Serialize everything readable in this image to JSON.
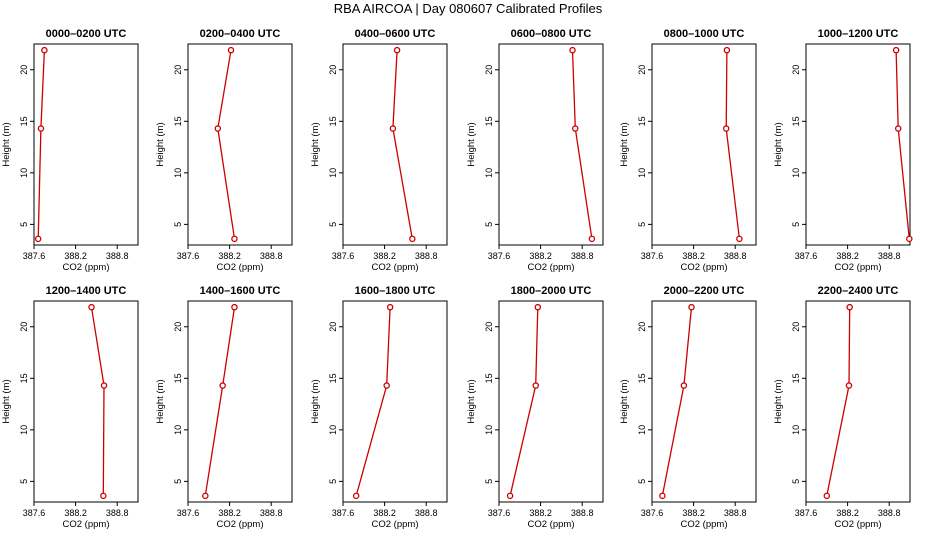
{
  "title": "RBA AIRCOA  |  Day 080607  Calibrated Profiles",
  "chart_data": [
    {
      "type": "line",
      "title": "0000–0200 UTC",
      "xlabel": "CO2 (ppm)",
      "ylabel": "Height (m)",
      "xlim": [
        387.6,
        389.1
      ],
      "ylim": [
        3.0,
        22.5
      ],
      "x_ticks": [
        "387.6",
        "388.2",
        "388.8"
      ],
      "y_ticks": [
        "5",
        "10",
        "15",
        "20"
      ],
      "x": [
        387.66,
        387.7,
        387.75
      ],
      "y": [
        3.6,
        14.3,
        21.9
      ]
    },
    {
      "type": "line",
      "title": "0200–0400 UTC",
      "xlabel": "CO2 (ppm)",
      "ylabel": "Height (m)",
      "xlim": [
        387.6,
        389.1
      ],
      "ylim": [
        3.0,
        22.5
      ],
      "x_ticks": [
        "387.6",
        "388.2",
        "388.8"
      ],
      "y_ticks": [
        "5",
        "10",
        "15",
        "20"
      ],
      "x": [
        388.27,
        388.03,
        388.22
      ],
      "y": [
        3.6,
        14.3,
        21.9
      ]
    },
    {
      "type": "line",
      "title": "0400–0600 UTC",
      "xlabel": "CO2 (ppm)",
      "ylabel": "Height (m)",
      "xlim": [
        387.6,
        389.1
      ],
      "ylim": [
        3.0,
        22.5
      ],
      "x_ticks": [
        "387.6",
        "388.2",
        "388.8"
      ],
      "y_ticks": [
        "5",
        "10",
        "15",
        "20"
      ],
      "x": [
        388.6,
        388.32,
        388.38
      ],
      "y": [
        3.6,
        14.3,
        21.9
      ]
    },
    {
      "type": "line",
      "title": "0600–0800 UTC",
      "xlabel": "CO2 (ppm)",
      "ylabel": "Height (m)",
      "xlim": [
        387.6,
        389.1
      ],
      "ylim": [
        3.0,
        22.5
      ],
      "x_ticks": [
        "387.6",
        "388.2",
        "388.8"
      ],
      "y_ticks": [
        "5",
        "10",
        "15",
        "20"
      ],
      "x": [
        388.94,
        388.7,
        388.66
      ],
      "y": [
        3.6,
        14.3,
        21.9
      ]
    },
    {
      "type": "line",
      "title": "0800–1000 UTC",
      "xlabel": "CO2 (ppm)",
      "ylabel": "Height (m)",
      "xlim": [
        387.6,
        389.1
      ],
      "ylim": [
        3.0,
        22.5
      ],
      "x_ticks": [
        "387.6",
        "388.2",
        "388.8"
      ],
      "y_ticks": [
        "5",
        "10",
        "15",
        "20"
      ],
      "x": [
        388.86,
        388.67,
        388.68
      ],
      "y": [
        3.6,
        14.3,
        21.9
      ]
    },
    {
      "type": "line",
      "title": "1000–1200 UTC",
      "xlabel": "CO2 (ppm)",
      "ylabel": "Height (m)",
      "xlim": [
        387.6,
        389.1
      ],
      "ylim": [
        3.0,
        22.5
      ],
      "x_ticks": [
        "387.6",
        "388.2",
        "388.8"
      ],
      "y_ticks": [
        "5",
        "10",
        "15",
        "20"
      ],
      "x": [
        389.09,
        388.93,
        388.9
      ],
      "y": [
        3.6,
        14.3,
        21.9
      ]
    },
    {
      "type": "line",
      "title": "1200–1400 UTC",
      "xlabel": "CO2 (ppm)",
      "ylabel": "Height (m)",
      "xlim": [
        387.6,
        389.1
      ],
      "ylim": [
        3.0,
        22.5
      ],
      "x_ticks": [
        "387.6",
        "388.2",
        "388.8"
      ],
      "y_ticks": [
        "5",
        "10",
        "15",
        "20"
      ],
      "x": [
        388.6,
        388.61,
        388.43
      ],
      "y": [
        3.6,
        14.3,
        21.9
      ]
    },
    {
      "type": "line",
      "title": "1400–1600 UTC",
      "xlabel": "CO2 (ppm)",
      "ylabel": "Height (m)",
      "xlim": [
        387.6,
        389.1
      ],
      "ylim": [
        3.0,
        22.5
      ],
      "x_ticks": [
        "387.6",
        "388.2",
        "388.8"
      ],
      "y_ticks": [
        "5",
        "10",
        "15",
        "20"
      ],
      "x": [
        387.85,
        388.1,
        388.27
      ],
      "y": [
        3.6,
        14.3,
        21.9
      ]
    },
    {
      "type": "line",
      "title": "1600–1800 UTC",
      "xlabel": "CO2 (ppm)",
      "ylabel": "Height (m)",
      "xlim": [
        387.6,
        389.1
      ],
      "ylim": [
        3.0,
        22.5
      ],
      "x_ticks": [
        "387.6",
        "388.2",
        "388.8"
      ],
      "y_ticks": [
        "5",
        "10",
        "15",
        "20"
      ],
      "x": [
        387.79,
        388.23,
        388.28
      ],
      "y": [
        3.6,
        14.3,
        21.9
      ]
    },
    {
      "type": "line",
      "title": "1800–2000 UTC",
      "xlabel": "CO2 (ppm)",
      "ylabel": "Height (m)",
      "xlim": [
        387.6,
        389.1
      ],
      "ylim": [
        3.0,
        22.5
      ],
      "x_ticks": [
        "387.6",
        "388.2",
        "388.8"
      ],
      "y_ticks": [
        "5",
        "10",
        "15",
        "20"
      ],
      "x": [
        387.76,
        388.13,
        388.16
      ],
      "y": [
        3.6,
        14.3,
        21.9
      ]
    },
    {
      "type": "line",
      "title": "2000–2200 UTC",
      "xlabel": "CO2 (ppm)",
      "ylabel": "Height (m)",
      "xlim": [
        387.6,
        389.1
      ],
      "ylim": [
        3.0,
        22.5
      ],
      "x_ticks": [
        "387.6",
        "388.2",
        "388.8"
      ],
      "y_ticks": [
        "5",
        "10",
        "15",
        "20"
      ],
      "x": [
        387.75,
        388.06,
        388.17
      ],
      "y": [
        3.6,
        14.3,
        21.9
      ]
    },
    {
      "type": "line",
      "title": "2200–2400 UTC",
      "xlabel": "CO2 (ppm)",
      "ylabel": "Height (m)",
      "xlim": [
        387.6,
        389.1
      ],
      "ylim": [
        3.0,
        22.5
      ],
      "x_ticks": [
        "387.6",
        "388.2",
        "388.8"
      ],
      "y_ticks": [
        "5",
        "10",
        "15",
        "20"
      ],
      "x": [
        387.9,
        388.22,
        388.23
      ],
      "y": [
        3.6,
        14.3,
        21.9
      ]
    }
  ],
  "colors": {
    "line": "#cc0000",
    "axis": "#000000"
  }
}
